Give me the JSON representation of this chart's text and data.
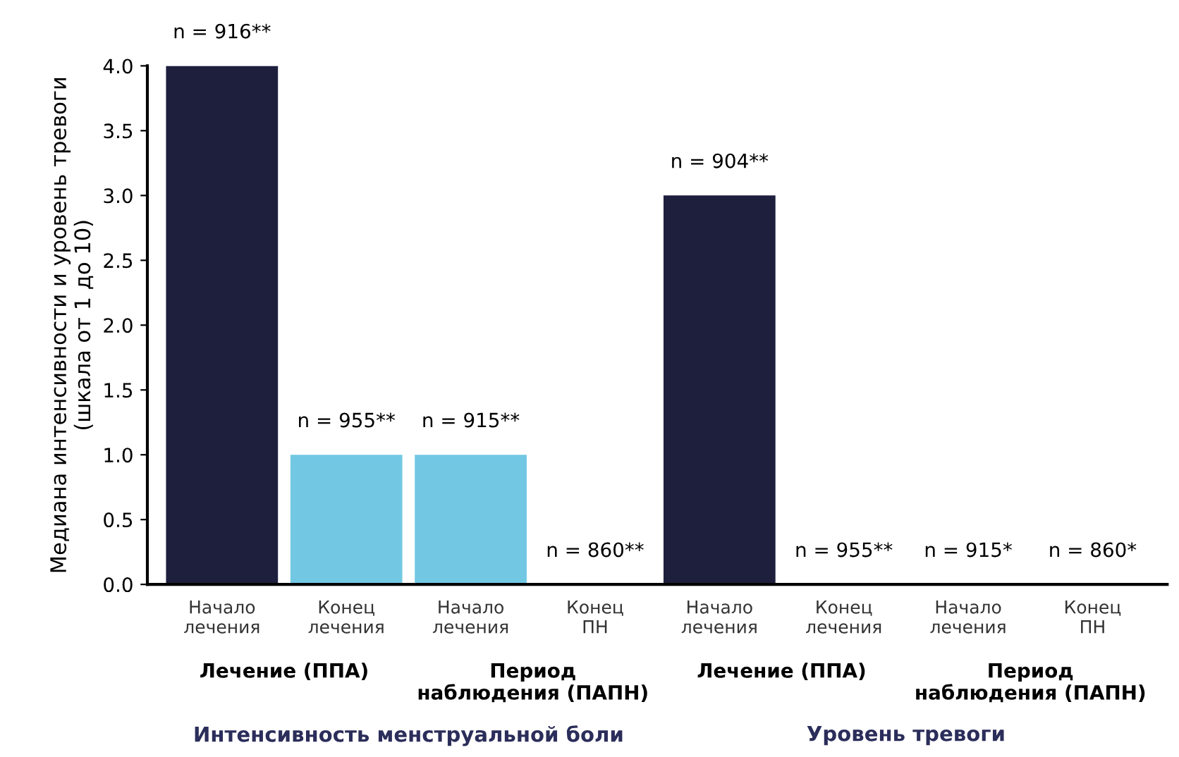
{
  "chart_data": {
    "type": "bar",
    "ylabel": "Медиана интенсивности и уровень тревоги\n(шкала от 1 до 10)",
    "categories": [
      "Начало\nлечения",
      "Конец\nлечения",
      "Начало\nлечения",
      "Конец\nПН",
      "Начало\nлечения",
      "Конец\nлечения",
      "Начало\nлечения",
      "Конец\nПН"
    ],
    "values": [
      4.0,
      1.0,
      1.0,
      0.0,
      3.0,
      0.0,
      0.0,
      0.0
    ],
    "colors": [
      "#1e1f3d",
      "#72c8e3",
      "#72c8e3",
      "#72c8e3",
      "#1e1f3d",
      "#72c8e3",
      "#72c8e3",
      "#72c8e3"
    ],
    "ylim": [
      0,
      4.0
    ],
    "yticks": [
      {
        "value": 0,
        "label": "0.0"
      },
      {
        "value": 0.5,
        "label": "0.5"
      },
      {
        "value": 1,
        "label": "1.0"
      },
      {
        "value": 1.5,
        "label": "1.5"
      },
      {
        "value": 2,
        "label": "2.0"
      },
      {
        "value": 2.5,
        "label": "2.5"
      },
      {
        "value": 3,
        "label": "3.0"
      },
      {
        "value": 3.5,
        "label": "3.5"
      },
      {
        "value": 4,
        "label": "4.0"
      }
    ],
    "annotations": [
      "n = 916**",
      "n = 955**",
      "n = 915**",
      "n = 860**",
      "n = 904**",
      "n = 955**",
      "n = 915*",
      "n = 860*",
      "Лечение (ППА)",
      "Период\nнаблюдения (ПАПН)",
      "Лечение (ППА)",
      "Период\nнаблюдения (ПАПН)",
      "Интенсивность менструальной боли",
      "Уровень тревоги"
    ],
    "grid": false,
    "legend": false
  }
}
